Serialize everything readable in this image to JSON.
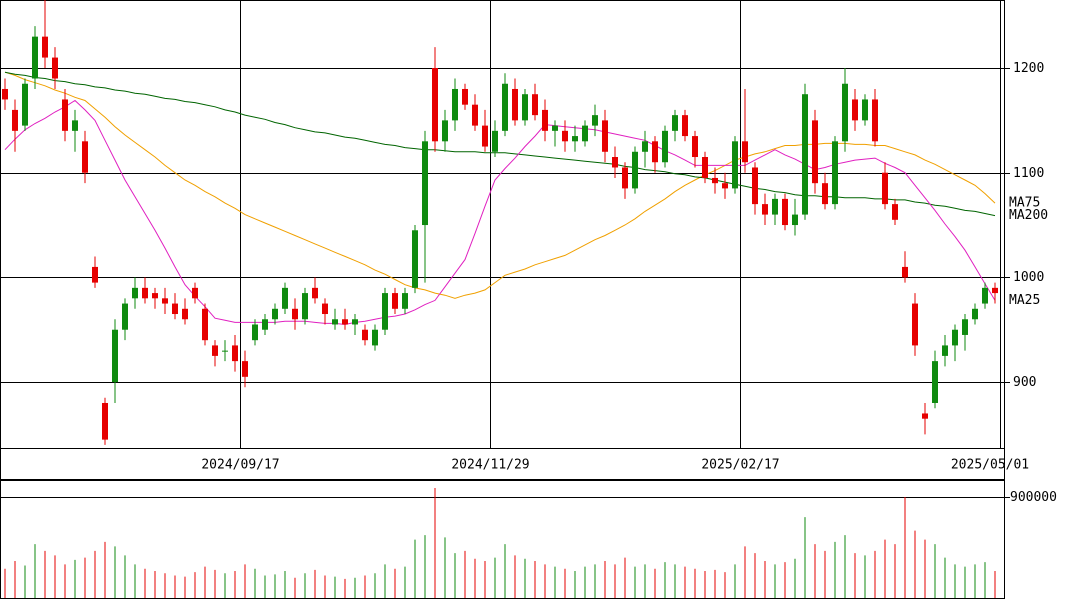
{
  "chart_data": {
    "type": "candlestick",
    "up_color": "#0f8a0f",
    "down_color": "#e60000",
    "ylim": [
      837,
      1265
    ],
    "yticks": [
      900,
      1000,
      1100,
      1200
    ],
    "xticks": [
      {
        "value": 24,
        "label": "2024/09/17"
      },
      {
        "value": 49,
        "label": "2024/11/29"
      },
      {
        "value": 74,
        "label": "2025/02/17"
      },
      {
        "value": 100,
        "label": "2025/05/01"
      }
    ],
    "ohlc": [
      [
        1180,
        1190,
        1160,
        1170
      ],
      [
        1160,
        1170,
        1120,
        1140
      ],
      [
        1145,
        1190,
        1140,
        1185
      ],
      [
        1190,
        1240,
        1180,
        1230
      ],
      [
        1230,
        1265,
        1200,
        1210
      ],
      [
        1210,
        1220,
        1180,
        1190
      ],
      [
        1170,
        1180,
        1130,
        1140
      ],
      [
        1140,
        1160,
        1120,
        1150
      ],
      [
        1130,
        1140,
        1090,
        1100
      ],
      [
        1010,
        1020,
        990,
        995
      ],
      [
        880,
        885,
        840,
        845
      ],
      [
        900,
        960,
        880,
        950
      ],
      [
        950,
        980,
        940,
        975
      ],
      [
        980,
        1000,
        970,
        990
      ],
      [
        990,
        1000,
        975,
        980
      ],
      [
        985,
        990,
        970,
        980
      ],
      [
        980,
        990,
        965,
        975
      ],
      [
        975,
        985,
        960,
        965
      ],
      [
        970,
        980,
        955,
        960
      ],
      [
        990,
        995,
        975,
        980
      ],
      [
        970,
        975,
        935,
        940
      ],
      [
        935,
        940,
        915,
        925
      ],
      [
        930,
        940,
        920,
        930
      ],
      [
        935,
        945,
        910,
        920
      ],
      [
        920,
        930,
        895,
        905
      ],
      [
        940,
        960,
        935,
        955
      ],
      [
        950,
        965,
        945,
        960
      ],
      [
        960,
        975,
        955,
        970
      ],
      [
        970,
        995,
        965,
        990
      ],
      [
        970,
        980,
        950,
        960
      ],
      [
        960,
        990,
        955,
        985
      ],
      [
        990,
        1000,
        975,
        980
      ],
      [
        975,
        980,
        955,
        965
      ],
      [
        955,
        970,
        950,
        960
      ],
      [
        960,
        970,
        950,
        955
      ],
      [
        955,
        965,
        945,
        960
      ],
      [
        950,
        955,
        935,
        940
      ],
      [
        935,
        955,
        930,
        950
      ],
      [
        950,
        990,
        945,
        985
      ],
      [
        985,
        990,
        965,
        970
      ],
      [
        970,
        990,
        965,
        985
      ],
      [
        990,
        1050,
        985,
        1045
      ],
      [
        1050,
        1140,
        995,
        1130
      ],
      [
        1200,
        1220,
        1120,
        1130
      ],
      [
        1130,
        1160,
        1120,
        1150
      ],
      [
        1150,
        1190,
        1140,
        1180
      ],
      [
        1180,
        1185,
        1160,
        1165
      ],
      [
        1165,
        1175,
        1140,
        1145
      ],
      [
        1145,
        1160,
        1120,
        1125
      ],
      [
        1120,
        1150,
        1115,
        1140
      ],
      [
        1140,
        1195,
        1135,
        1185
      ],
      [
        1180,
        1190,
        1145,
        1150
      ],
      [
        1150,
        1180,
        1145,
        1175
      ],
      [
        1175,
        1185,
        1150,
        1155
      ],
      [
        1160,
        1170,
        1130,
        1140
      ],
      [
        1140,
        1150,
        1125,
        1145
      ],
      [
        1140,
        1150,
        1120,
        1130
      ],
      [
        1130,
        1145,
        1120,
        1135
      ],
      [
        1130,
        1150,
        1125,
        1145
      ],
      [
        1145,
        1165,
        1135,
        1155
      ],
      [
        1150,
        1160,
        1110,
        1120
      ],
      [
        1115,
        1125,
        1095,
        1105
      ],
      [
        1105,
        1110,
        1075,
        1085
      ],
      [
        1085,
        1125,
        1080,
        1120
      ],
      [
        1120,
        1140,
        1105,
        1130
      ],
      [
        1130,
        1135,
        1100,
        1110
      ],
      [
        1110,
        1145,
        1105,
        1140
      ],
      [
        1140,
        1160,
        1130,
        1155
      ],
      [
        1155,
        1160,
        1130,
        1135
      ],
      [
        1135,
        1140,
        1105,
        1115
      ],
      [
        1115,
        1120,
        1090,
        1095
      ],
      [
        1095,
        1105,
        1080,
        1090
      ],
      [
        1090,
        1100,
        1075,
        1085
      ],
      [
        1085,
        1135,
        1080,
        1130
      ],
      [
        1130,
        1180,
        1100,
        1110
      ],
      [
        1105,
        1110,
        1060,
        1070
      ],
      [
        1070,
        1080,
        1050,
        1060
      ],
      [
        1060,
        1080,
        1050,
        1075
      ],
      [
        1075,
        1080,
        1045,
        1050
      ],
      [
        1050,
        1075,
        1040,
        1060
      ],
      [
        1060,
        1185,
        1055,
        1175
      ],
      [
        1150,
        1160,
        1080,
        1090
      ],
      [
        1090,
        1100,
        1065,
        1070
      ],
      [
        1070,
        1135,
        1065,
        1130
      ],
      [
        1130,
        1200,
        1120,
        1185
      ],
      [
        1170,
        1180,
        1140,
        1150
      ],
      [
        1150,
        1175,
        1145,
        1170
      ],
      [
        1170,
        1180,
        1125,
        1130
      ],
      [
        1100,
        1110,
        1065,
        1070
      ],
      [
        1070,
        1075,
        1050,
        1055
      ],
      [
        1010,
        1025,
        995,
        1000
      ],
      [
        975,
        985,
        925,
        935
      ],
      [
        870,
        880,
        850,
        865
      ],
      [
        880,
        930,
        875,
        920
      ],
      [
        925,
        945,
        915,
        935
      ],
      [
        935,
        955,
        920,
        950
      ],
      [
        945,
        965,
        930,
        960
      ],
      [
        960,
        975,
        955,
        970
      ],
      [
        975,
        995,
        970,
        990
      ],
      [
        990,
        995,
        975,
        985
      ]
    ],
    "moving_averages": [
      {
        "name": "MA75",
        "color": "#f0a000",
        "values": [
          1196,
          1193,
          1189,
          1186,
          1183,
          1179,
          1176,
          1172,
          1169,
          1161,
          1153,
          1144,
          1136,
          1129,
          1122,
          1115,
          1107,
          1100,
          1093,
          1088,
          1082,
          1077,
          1071,
          1066,
          1060,
          1056,
          1052,
          1048,
          1044,
          1040,
          1036,
          1032,
          1028,
          1024,
          1020,
          1016,
          1012,
          1007,
          1003,
          998,
          993,
          990,
          988,
          985,
          983,
          980,
          983,
          985,
          988,
          995,
          1002,
          1005,
          1008,
          1012,
          1015,
          1018,
          1021,
          1026,
          1031,
          1036,
          1040,
          1045,
          1050,
          1056,
          1063,
          1069,
          1075,
          1082,
          1088,
          1093,
          1098,
          1102,
          1107,
          1112,
          1115,
          1118,
          1120,
          1123,
          1126,
          1126,
          1127,
          1127,
          1128,
          1128,
          1128,
          1127,
          1127,
          1126,
          1126,
          1123,
          1120,
          1117,
          1112,
          1108,
          1103,
          1098,
          1093,
          1088,
          1080,
          1071
        ]
      },
      {
        "name": "MA200",
        "color": "#006400",
        "values": [
          1196,
          1194,
          1193,
          1191,
          1190,
          1188,
          1187,
          1185,
          1184,
          1182,
          1181,
          1179,
          1178,
          1176,
          1175,
          1173,
          1171,
          1170,
          1168,
          1167,
          1165,
          1163,
          1160,
          1158,
          1155,
          1153,
          1151,
          1148,
          1146,
          1143,
          1141,
          1139,
          1138,
          1136,
          1134,
          1133,
          1131,
          1129,
          1127,
          1126,
          1124,
          1123,
          1122,
          1122,
          1121,
          1120,
          1120,
          1120,
          1119,
          1119,
          1119,
          1118,
          1117,
          1116,
          1115,
          1114,
          1113,
          1112,
          1111,
          1110,
          1109,
          1108,
          1106,
          1105,
          1103,
          1102,
          1101,
          1099,
          1098,
          1096,
          1095,
          1093,
          1091,
          1089,
          1087,
          1085,
          1084,
          1082,
          1081,
          1079,
          1078,
          1078,
          1077,
          1077,
          1076,
          1076,
          1076,
          1075,
          1075,
          1074,
          1074,
          1072,
          1071,
          1069,
          1068,
          1066,
          1064,
          1063,
          1061,
          1059
        ]
      },
      {
        "name": "MA25",
        "color": "#e020c0",
        "values": [
          1122,
          1132,
          1141,
          1147,
          1152,
          1158,
          1163,
          1169,
          1160,
          1150,
          1131,
          1112,
          1093,
          1077,
          1061,
          1045,
          1028,
          1010,
          993,
          982,
          972,
          961,
          959,
          957,
          957,
          957,
          957,
          957,
          958,
          958,
          958,
          957,
          956,
          956,
          955,
          957,
          958,
          960,
          962,
          963,
          965,
          969,
          974,
          978,
          991,
          1004,
          1017,
          1042,
          1068,
          1093,
          1104,
          1114,
          1125,
          1135,
          1146,
          1145,
          1144,
          1143,
          1142,
          1141,
          1139,
          1137,
          1135,
          1133,
          1131,
          1126,
          1121,
          1117,
          1112,
          1107,
          1107,
          1107,
          1107,
          1107,
          1107,
          1112,
          1117,
          1122,
          1117,
          1113,
          1108,
          1103,
          1105,
          1108,
          1110,
          1112,
          1113,
          1114,
          1109,
          1105,
          1100,
          1088,
          1076,
          1064,
          1051,
          1039,
          1026,
          1010,
          994,
          978
        ]
      }
    ],
    "volume": {
      "ylim": [
        0,
        1051000
      ],
      "yticks": [
        900000
      ],
      "values": [
        260000,
        330000,
        290000,
        480000,
        420000,
        380000,
        300000,
        340000,
        360000,
        420000,
        500000,
        460000,
        380000,
        300000,
        260000,
        240000,
        220000,
        200000,
        190000,
        230000,
        280000,
        250000,
        220000,
        240000,
        300000,
        260000,
        200000,
        210000,
        240000,
        180000,
        220000,
        250000,
        200000,
        190000,
        170000,
        180000,
        200000,
        220000,
        300000,
        260000,
        280000,
        520000,
        560000,
        980000,
        540000,
        400000,
        420000,
        350000,
        330000,
        360000,
        480000,
        380000,
        350000,
        330000,
        300000,
        280000,
        260000,
        240000,
        280000,
        300000,
        330000,
        300000,
        360000,
        280000,
        300000,
        260000,
        320000,
        300000,
        280000,
        260000,
        240000,
        250000,
        230000,
        300000,
        460000,
        400000,
        330000,
        300000,
        320000,
        350000,
        720000,
        480000,
        420000,
        500000,
        560000,
        400000,
        380000,
        420000,
        520000,
        480000,
        900000,
        600000,
        520000,
        480000,
        360000,
        300000,
        280000,
        300000,
        320000,
        240000
      ]
    }
  }
}
